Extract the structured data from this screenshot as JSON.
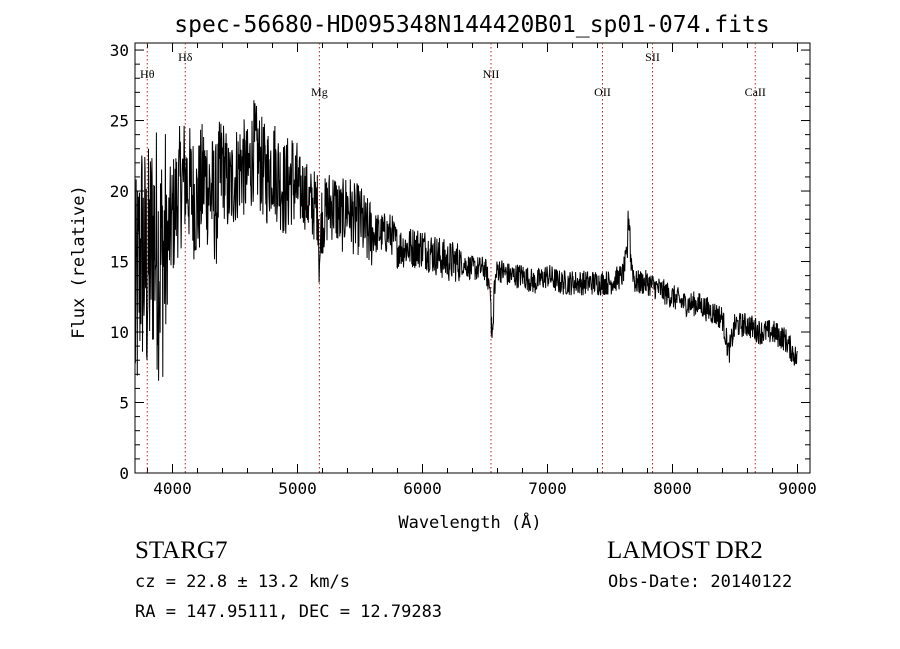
{
  "chart_data": {
    "type": "line",
    "title": "spec-56680-HD095348N144420B01_sp01-074.fits",
    "xlabel": "Wavelength (Å)",
    "ylabel": "Flux (relative)",
    "xlim": [
      3700,
      9100
    ],
    "ylim": [
      0,
      30.5
    ],
    "xticks": [
      4000,
      5000,
      6000,
      7000,
      8000,
      9000
    ],
    "yticks": [
      0,
      5,
      10,
      15,
      20,
      25,
      30
    ],
    "grid": false,
    "series": [
      {
        "name": "flux",
        "x": [
          3700,
          3750,
          3800,
          3850,
          3900,
          3950,
          4000,
          4050,
          4100,
          4150,
          4200,
          4250,
          4300,
          4350,
          4400,
          4450,
          4500,
          4550,
          4600,
          4650,
          4700,
          4750,
          4800,
          4850,
          4900,
          4950,
          5000,
          5050,
          5100,
          5150,
          5200,
          5250,
          5300,
          5350,
          5400,
          5450,
          5500,
          5550,
          5600,
          5650,
          5700,
          5750,
          5800,
          5850,
          5900,
          5950,
          6000,
          6100,
          6200,
          6300,
          6400,
          6500,
          6560,
          6600,
          6700,
          6800,
          6900,
          7000,
          7100,
          7200,
          7300,
          7400,
          7500,
          7600,
          7650,
          7700,
          7800,
          7900,
          8000,
          8100,
          8200,
          8300,
          8400,
          8450,
          8500,
          8600,
          8700,
          8800,
          8900,
          9000
        ],
        "y": [
          11,
          16,
          14,
          17,
          15,
          16,
          18,
          20,
          21,
          20,
          19,
          21,
          20,
          19,
          22,
          20,
          21,
          22,
          21,
          23,
          22,
          21,
          22,
          21,
          20,
          21,
          20,
          20,
          19,
          19,
          18,
          19,
          19,
          18,
          19,
          18,
          18,
          17,
          17,
          17,
          17,
          17,
          16,
          16,
          16,
          16,
          16,
          15.5,
          15,
          15,
          14.5,
          14.5,
          12.5,
          14.5,
          14,
          14,
          13.5,
          14,
          13.5,
          13.5,
          13.5,
          13.5,
          13.5,
          14,
          16,
          13.5,
          13.5,
          13,
          12.5,
          12,
          12,
          11.5,
          11,
          8.5,
          10.5,
          10.5,
          10,
          10,
          9.5,
          8
        ]
      }
    ],
    "lines": [
      {
        "label": "Hθ",
        "x": 3798
      },
      {
        "label": "Hδ",
        "x": 4102
      },
      {
        "label": "Mg",
        "x": 5175
      },
      {
        "label": "NII",
        "x": 6548
      },
      {
        "label": "OII",
        "x": 7440
      },
      {
        "label": "SII",
        "x": 7840
      },
      {
        "label": "CaII",
        "x": 8662
      }
    ]
  },
  "info": {
    "object_type": "STAR",
    "object_class": "G7",
    "survey": "LAMOST DR2",
    "cz_line": "cz = 22.8 ± 13.2 km/s",
    "obs_date": "Obs-Date: 20140122",
    "radec_line": "RA = 147.95111, DEC =  12.79283"
  },
  "colors": {
    "spectrum": "#000000",
    "line_markers": "#b22222",
    "axes": "#000000",
    "background": "#ffffff"
  }
}
